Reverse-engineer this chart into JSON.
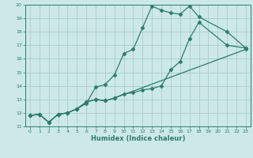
{
  "title": "",
  "xlabel": "Humidex (Indice chaleur)",
  "ylabel": "",
  "bg_color": "#cce8e8",
  "grid_color": "#aacccc",
  "line_color": "#2e7b6e",
  "xlim": [
    -0.5,
    23.5
  ],
  "ylim": [
    11,
    20
  ],
  "xticks": [
    0,
    1,
    2,
    3,
    4,
    5,
    6,
    7,
    8,
    9,
    10,
    11,
    12,
    13,
    14,
    15,
    16,
    17,
    18,
    19,
    20,
    21,
    22,
    23
  ],
  "yticks": [
    11,
    12,
    13,
    14,
    15,
    16,
    17,
    18,
    19,
    20
  ],
  "line1_x": [
    0,
    1,
    2,
    3,
    4,
    5,
    6,
    7,
    8,
    9,
    10,
    11,
    12,
    13,
    14,
    15,
    16,
    17,
    18,
    21,
    23
  ],
  "line1_y": [
    11.8,
    11.9,
    11.3,
    11.9,
    12.0,
    12.3,
    12.7,
    13.9,
    14.1,
    14.8,
    16.4,
    16.7,
    18.3,
    19.9,
    19.6,
    19.4,
    19.3,
    19.9,
    19.1,
    18.0,
    16.8
  ],
  "line2_x": [
    0,
    1,
    2,
    3,
    4,
    5,
    6,
    7,
    8,
    9,
    10,
    11,
    12,
    13,
    14,
    15,
    16,
    17,
    18,
    21,
    23
  ],
  "line2_y": [
    11.8,
    11.9,
    11.3,
    11.9,
    12.0,
    12.3,
    12.8,
    13.0,
    12.9,
    13.1,
    13.4,
    13.5,
    13.7,
    13.8,
    14.0,
    15.2,
    15.8,
    17.5,
    18.7,
    17.0,
    16.8
  ],
  "line3_x": [
    0,
    1,
    2,
    3,
    4,
    5,
    6,
    7,
    8,
    9,
    23
  ],
  "line3_y": [
    11.8,
    11.9,
    11.3,
    11.9,
    12.0,
    12.3,
    12.8,
    13.0,
    12.9,
    13.1,
    16.7
  ],
  "marker": "D",
  "markersize": 2.5,
  "linewidth": 0.9
}
